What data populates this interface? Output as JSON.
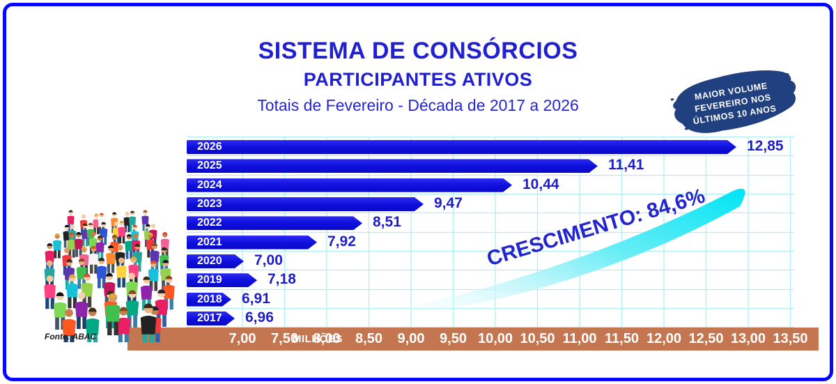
{
  "title": "SISTEMA DE CONSÓRCIOS",
  "subtitle": "PARTICIPANTES ATIVOS",
  "period": "Totais de Fevereiro - Década de 2017 a 2026",
  "badge": {
    "lines": [
      "MAIOR VOLUME",
      "FEVEREIRO NOS",
      "ÚLTIMOS 10 ANOS"
    ]
  },
  "growth_label": "CRESCIMENTO: 84,6%",
  "source": "Fonte: ABAC",
  "axis": {
    "unit_label": "MILHÕES",
    "ticks": [
      "7,00",
      "7,50",
      "8,00",
      "8,50",
      "9,00",
      "9,50",
      "10,00",
      "10,50",
      "11,00",
      "11,50",
      "12,00",
      "12,50",
      "13,00",
      "13,50"
    ]
  },
  "chart_data": {
    "type": "bar",
    "orientation": "horizontal",
    "title": "SISTEMA DE CONSÓRCIOS - PARTICIPANTES ATIVOS",
    "subtitle": "Totais de Fevereiro - Década de 2017 a 2026",
    "categories": [
      "2026",
      "2025",
      "2024",
      "2023",
      "2022",
      "2021",
      "2020",
      "2019",
      "2018",
      "2017"
    ],
    "values": [
      12.85,
      11.41,
      10.44,
      9.47,
      8.51,
      7.92,
      7.0,
      7.18,
      6.91,
      6.96
    ],
    "value_labels": [
      "12,85",
      "11,41",
      "10,44",
      "9,47",
      "8,51",
      "7,92",
      "7,00",
      "7,18",
      "6,91",
      "6,96"
    ],
    "xlabel": "MILHÕES",
    "xlim": [
      6.4,
      13.5
    ],
    "grid": true,
    "annotations": [
      "CRESCIMENTO: 84,6%",
      "MAIOR VOLUME FEVEREIRO NOS ÚLTIMOS 10 ANOS"
    ]
  },
  "colors": {
    "bar_blue": "#1212e0",
    "title_blue": "#2020cf",
    "value_blue": "#1e1ec8",
    "axis_brown": "#c3764f",
    "grid_cyan": "#aeeff4",
    "badge_navy": "#21407f",
    "swoosh_cyan": "#00e4f4",
    "border_blue": "#0707fb"
  }
}
